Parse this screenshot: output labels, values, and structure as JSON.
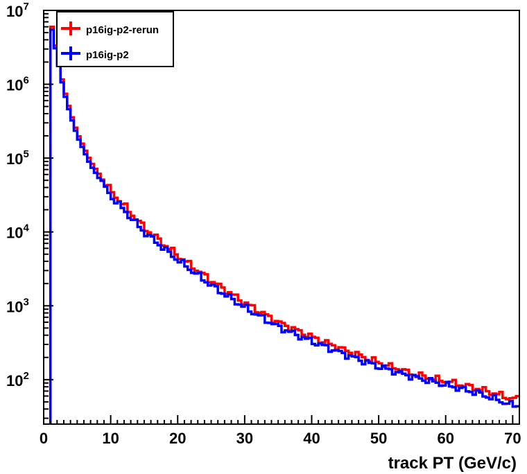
{
  "chart_data": {
    "type": "line",
    "title": "",
    "xlabel": "track PT (GeV/c)",
    "ylabel": "",
    "xlim": [
      0,
      71
    ],
    "ylim": [
      25,
      10000000
    ],
    "yscale": "log",
    "bin_width": 0.5,
    "x_ticks": [
      "0",
      "10",
      "20",
      "30",
      "40",
      "50",
      "60",
      "70"
    ],
    "y_ticks": [
      {
        "base": "10",
        "exp": "2"
      },
      {
        "base": "10",
        "exp": "3"
      },
      {
        "base": "10",
        "exp": "4"
      },
      {
        "base": "10",
        "exp": "5"
      },
      {
        "base": "10",
        "exp": "6"
      },
      {
        "base": "10",
        "exp": "7"
      }
    ],
    "legend": {
      "position": "top-left",
      "entries": [
        {
          "label": "p16ig-p2-rerun",
          "color": "#ff0000"
        },
        {
          "label": "p16ig-p2",
          "color": "#0000ff"
        }
      ]
    },
    "series": [
      {
        "name": "p16ig-p2-rerun",
        "color": "#ff0000",
        "x": [
          1.25,
          2,
          3,
          4,
          5,
          7,
          10,
          15,
          20,
          25,
          30,
          35,
          40,
          45,
          50,
          55,
          60,
          65,
          70
        ],
        "values": [
          6000000,
          2500000,
          900000,
          420000,
          220000,
          90000,
          36000,
          11500,
          4800,
          2200,
          1100,
          600,
          380,
          250,
          170,
          120,
          95,
          75,
          55
        ]
      },
      {
        "name": "p16ig-p2",
        "color": "#0000ff",
        "x": [
          1.25,
          2,
          3,
          4,
          5,
          7,
          10,
          15,
          20,
          25,
          30,
          35,
          40,
          45,
          50,
          55,
          60,
          65,
          70
        ],
        "values": [
          5500000,
          2300000,
          820000,
          380000,
          200000,
          80000,
          31000,
          10000,
          4200,
          1900,
          950,
          520,
          330,
          220,
          150,
          110,
          85,
          65,
          45
        ]
      }
    ]
  }
}
